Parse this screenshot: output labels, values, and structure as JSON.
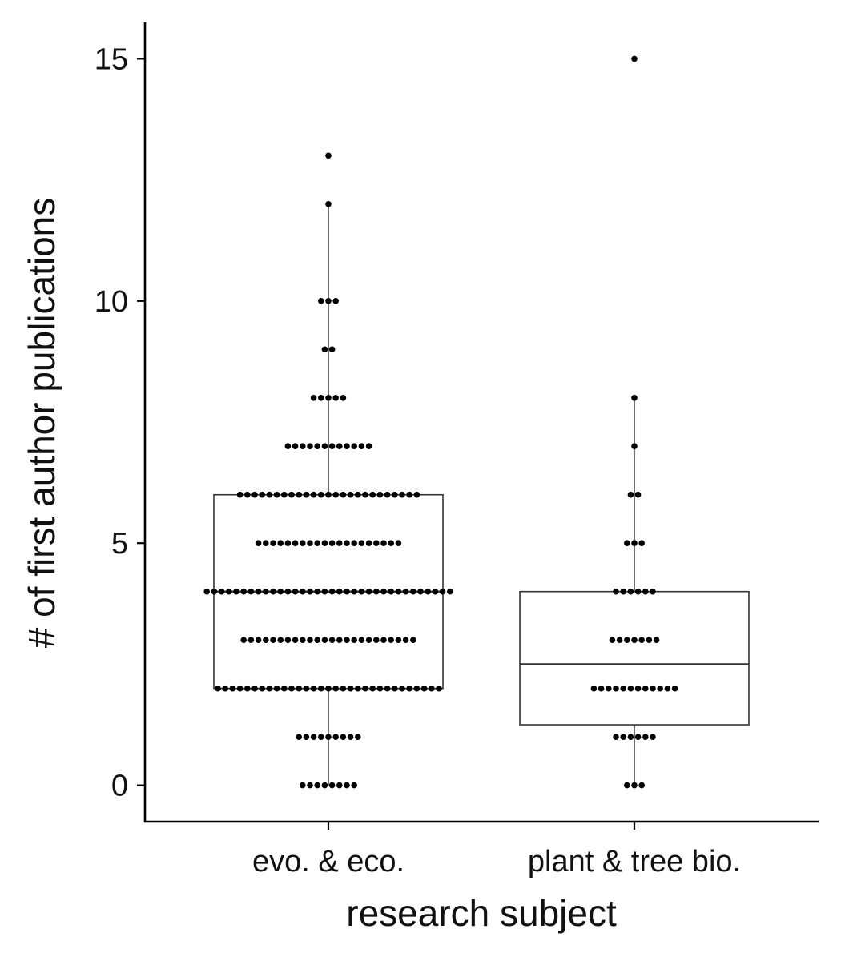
{
  "chart_data": {
    "type": "boxplot",
    "xlabel": "research subject",
    "ylabel": "# of first author publications",
    "ylim": [
      -0.75,
      15.75
    ],
    "yticks": [
      0,
      5,
      10,
      15
    ],
    "yticklabels": [
      "0",
      "5",
      "10",
      "15"
    ],
    "grid": false,
    "legend": "none",
    "categories": [
      "evo. & eco.",
      "plant & tree bio."
    ],
    "boxes": [
      {
        "category": "evo. & eco.",
        "q1": 2,
        "median": 4,
        "q3": 6,
        "whisker_low": 0,
        "whisker_high": 12,
        "counts": {
          "0": 8,
          "1": 9,
          "2": 31,
          "3": 24,
          "4": 34,
          "5": 20,
          "6": 25,
          "7": 12,
          "8": 5,
          "9": 2,
          "10": 3,
          "12": 1,
          "13": 1
        }
      },
      {
        "category": "plant & tree bio.",
        "q1": 1.25,
        "median": 2.5,
        "q3": 4,
        "whisker_low": 0,
        "whisker_high": 8,
        "counts": {
          "0": 3,
          "1": 6,
          "2": 12,
          "3": 7,
          "4": 6,
          "5": 3,
          "6": 2,
          "7": 1,
          "8": 1,
          "15": 1
        }
      }
    ]
  }
}
